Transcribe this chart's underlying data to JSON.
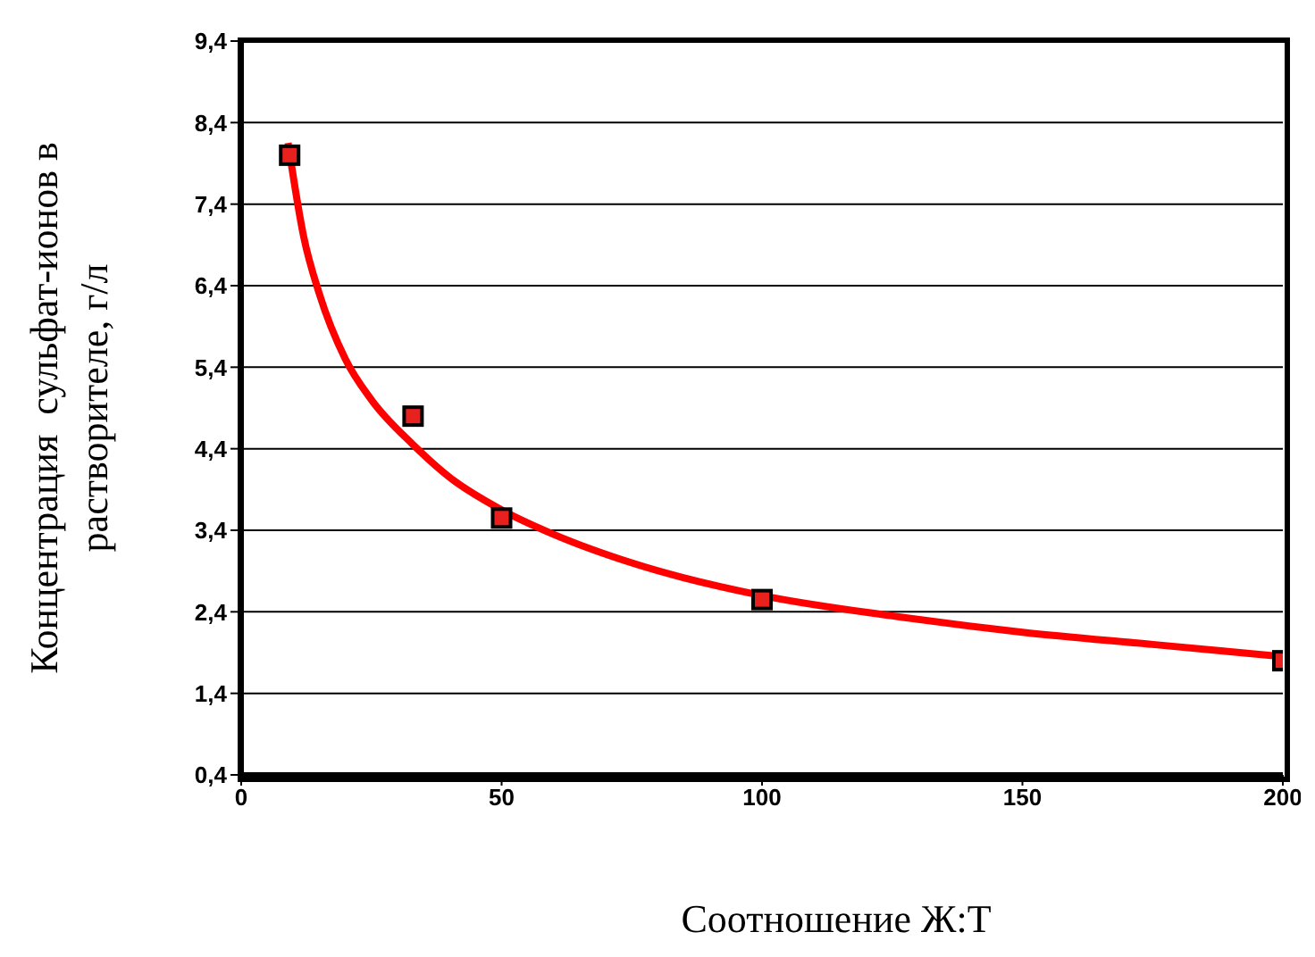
{
  "chart_data": {
    "type": "scatter",
    "xlabel": "Соотношение Ж:Т",
    "ylabel": "Концентрация  сульфат-ионов в\nрастворителе, г/л",
    "xlim": [
      0,
      200
    ],
    "xticks": [
      0,
      50,
      100,
      150,
      200
    ],
    "ylim": [
      0.4,
      9.4
    ],
    "yticks": [
      {
        "value": 0.4,
        "label": "0,4"
      },
      {
        "value": 1.4,
        "label": "1,4"
      },
      {
        "value": 2.4,
        "label": "2,4"
      },
      {
        "value": 3.4,
        "label": "3,4"
      },
      {
        "value": 4.4,
        "label": "4,4"
      },
      {
        "value": 5.4,
        "label": "5,4"
      },
      {
        "value": 6.4,
        "label": "6,4"
      },
      {
        "value": 7.4,
        "label": "7,4"
      },
      {
        "value": 8.4,
        "label": "8,4"
      },
      {
        "value": 9.4,
        "label": "9,4"
      }
    ],
    "grid": "y",
    "series": [
      {
        "type": "line",
        "color": "#ff0000",
        "marker": "none",
        "line_style": "solid",
        "x": [
          9,
          12,
          15,
          20,
          25,
          33,
          40,
          50,
          60,
          75,
          100,
          125,
          150,
          175,
          200
        ],
        "values": [
          8.15,
          7.0,
          6.3,
          5.5,
          5.0,
          4.45,
          4.05,
          3.65,
          3.35,
          3.0,
          2.6,
          2.35,
          2.15,
          2.0,
          1.85
        ]
      },
      {
        "color": "#e8201e",
        "marker": "square",
        "x": [
          9.3,
          33,
          50,
          100,
          200
        ],
        "values": [
          8.0,
          4.8,
          3.55,
          2.55,
          1.8
        ]
      }
    ]
  }
}
